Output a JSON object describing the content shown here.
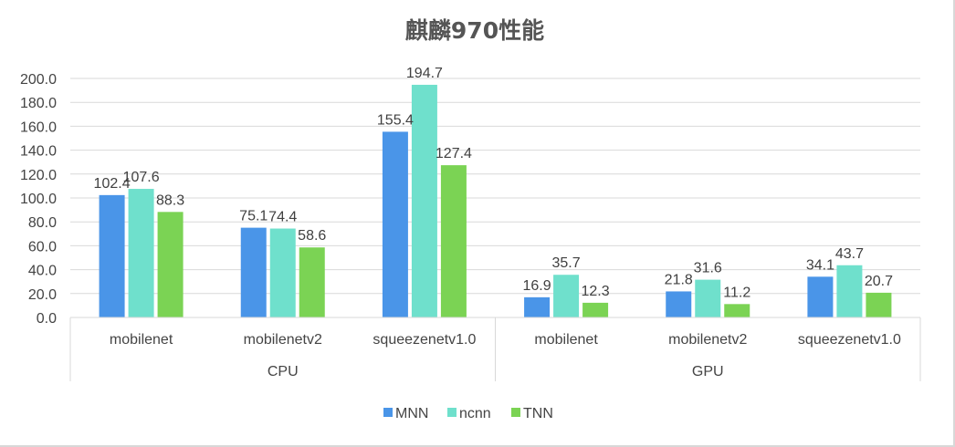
{
  "chart_data": {
    "type": "bar",
    "title": "麒麟970性能",
    "xlabel": "",
    "ylabel": "",
    "ylim": [
      0,
      200
    ],
    "yticks": [
      "0.0",
      "20.0",
      "40.0",
      "60.0",
      "80.0",
      "100.0",
      "120.0",
      "140.0",
      "160.0",
      "180.0",
      "200.0"
    ],
    "grid": true,
    "legend_position": "bottom",
    "groups": [
      {
        "label": "CPU",
        "categories": [
          "mobilenet",
          "mobilenetv2",
          "squeezenetv1.0"
        ]
      },
      {
        "label": "GPU",
        "categories": [
          "mobilenet",
          "mobilenetv2",
          "squeezenetv1.0"
        ]
      }
    ],
    "categories": [
      "mobilenet",
      "mobilenetv2",
      "squeezenetv1.0",
      "mobilenet",
      "mobilenetv2",
      "squeezenetv1.0"
    ],
    "series": [
      {
        "name": "MNN",
        "color": "#4a95e8",
        "values": [
          102.4,
          75.1,
          155.4,
          16.9,
          21.8,
          34.1
        ],
        "labels": [
          "102.4",
          "75.1",
          "155.4",
          "16.9",
          "21.8",
          "34.1"
        ]
      },
      {
        "name": "ncnn",
        "color": "#6fe0cc",
        "values": [
          107.6,
          74.4,
          194.7,
          35.7,
          31.6,
          43.7
        ],
        "labels": [
          "107.6",
          "74.4",
          "194.7",
          "35.7",
          "31.6",
          "43.7"
        ]
      },
      {
        "name": "TNN",
        "color": "#7bd354",
        "values": [
          88.3,
          58.6,
          127.4,
          12.3,
          11.2,
          20.7
        ],
        "labels": [
          "88.3",
          "58.6",
          "127.4",
          "12.3",
          "11.2",
          "20.7"
        ]
      }
    ]
  }
}
